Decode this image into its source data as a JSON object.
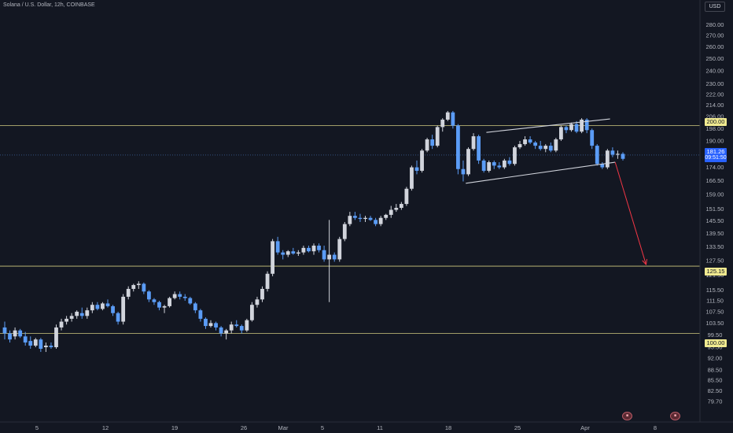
{
  "header": {
    "title": "Solana / U.S. Dollar, 12h, COINBASE",
    "currency": "USD"
  },
  "price_labels": {
    "level_200": "200.00",
    "level_125": "125.15",
    "level_100": "100.00",
    "current_price": "181.26",
    "countdown": "09:51:50"
  },
  "events": {
    "event1": "■",
    "event2": "■"
  },
  "colors": {
    "background": "#131722",
    "bull_candle": "#d1d4dc",
    "bear_candle": "#5b9cf6",
    "level_line": "#f0ea90",
    "channel_line": "#d1d4dc",
    "projection_arrow": "#f23645",
    "axis_text": "#b2b5be"
  },
  "chart_data": {
    "type": "candlestick",
    "title": "Solana / U.S. Dollar, 12h, COINBASE",
    "y_axis_scale": "log",
    "ylim": [
      76,
      290
    ],
    "y_ticks": [
      280,
      270,
      260,
      250,
      240,
      230,
      222,
      214,
      206,
      198,
      190,
      182,
      174,
      166.5,
      159,
      151.5,
      145.5,
      139.5,
      133.5,
      127.5,
      121.5,
      115.5,
      111.5,
      107.5,
      103.5,
      99.5,
      95.5,
      92,
      88.5,
      85.5,
      82.5,
      79.7
    ],
    "y_tick_labels": [
      "280.00",
      "270.00",
      "260.00",
      "250.00",
      "240.00",
      "230.00",
      "222.00",
      "214.00",
      "206.00",
      "198.00",
      "190.00",
      "182.00",
      "174.00",
      "166.50",
      "159.00",
      "151.50",
      "145.50",
      "139.50",
      "133.50",
      "127.50",
      "121.50",
      "115.50",
      "111.50",
      "107.50",
      "103.50",
      "99.50",
      "95.50",
      "92.00",
      "88.50",
      "85.50",
      "82.50",
      "79.70"
    ],
    "x_tick_labels": [
      "5",
      "12",
      "19",
      "26",
      "Mar",
      "5",
      "11",
      "18",
      "25",
      "Apr",
      "8"
    ],
    "grid": false,
    "horizontal_levels": [
      200.0,
      125.15,
      100.0
    ],
    "current_price": 181.26,
    "candles": [
      [
        102,
        104,
        98,
        100
      ],
      [
        100,
        101,
        97,
        98
      ],
      [
        99,
        102,
        98,
        101
      ],
      [
        101,
        101.5,
        98.5,
        99
      ],
      [
        99,
        100.5,
        96,
        97
      ],
      [
        97.5,
        99,
        95,
        96
      ],
      [
        96,
        98.5,
        95.5,
        98
      ],
      [
        98,
        98.5,
        94,
        95
      ],
      [
        95.5,
        97,
        94,
        96
      ],
      [
        96,
        97,
        95,
        95.5
      ],
      [
        95.5,
        103,
        95,
        102
      ],
      [
        102,
        105,
        101,
        104
      ],
      [
        104,
        106,
        103,
        105
      ],
      [
        105,
        107,
        104,
        106
      ],
      [
        106,
        108,
        105,
        107.5
      ],
      [
        107,
        109,
        105,
        106
      ],
      [
        106,
        109,
        105,
        108
      ],
      [
        108,
        111,
        107,
        110
      ],
      [
        110,
        111,
        108,
        108.5
      ],
      [
        108.5,
        111,
        108,
        110.5
      ],
      [
        110.5,
        112,
        109,
        109.5
      ],
      [
        109.5,
        110,
        106,
        107
      ],
      [
        107,
        107.5,
        103,
        104
      ],
      [
        104,
        114,
        103,
        113
      ],
      [
        113,
        117,
        112,
        116
      ],
      [
        116,
        118,
        115,
        117.5
      ],
      [
        117.5,
        119,
        116,
        118
      ],
      [
        118,
        118.5,
        114,
        115
      ],
      [
        115,
        115.5,
        111,
        112
      ],
      [
        112,
        112.5,
        110,
        111
      ],
      [
        111,
        111.5,
        108,
        109
      ],
      [
        109,
        110,
        107,
        109.5
      ],
      [
        109.5,
        113,
        109,
        112.5
      ],
      [
        112.5,
        115,
        112,
        114
      ],
      [
        114,
        115,
        112,
        113
      ],
      [
        113,
        114,
        111.5,
        112.5
      ],
      [
        112.5,
        113,
        110,
        110.5
      ],
      [
        110.5,
        111,
        107,
        108
      ],
      [
        108,
        108.5,
        104,
        105
      ],
      [
        105,
        105.5,
        101.5,
        102.5
      ],
      [
        102.5,
        104.5,
        102,
        103.5
      ],
      [
        103.5,
        104,
        101,
        102
      ],
      [
        102,
        102.5,
        99,
        100
      ],
      [
        100,
        101.5,
        98,
        101
      ],
      [
        101,
        104,
        100,
        103
      ],
      [
        103,
        104.5,
        102,
        102.5
      ],
      [
        102.5,
        103,
        100,
        101
      ],
      [
        101,
        105,
        100.5,
        104.5
      ],
      [
        104.5,
        111,
        104,
        110
      ],
      [
        110,
        113,
        109,
        112
      ],
      [
        112,
        117,
        111,
        116
      ],
      [
        116,
        123,
        115,
        122
      ],
      [
        122,
        137,
        121,
        136
      ],
      [
        136,
        138,
        130,
        131
      ],
      [
        131,
        132,
        128,
        130
      ],
      [
        130,
        132,
        129,
        131.5
      ],
      [
        131.5,
        133,
        130,
        130.5
      ],
      [
        130.5,
        132,
        129.5,
        131
      ],
      [
        131,
        134,
        130,
        133
      ],
      [
        133,
        134,
        131,
        131.5
      ],
      [
        131.5,
        135,
        130,
        134
      ],
      [
        134,
        135,
        131,
        132
      ],
      [
        132,
        134,
        127,
        128
      ],
      [
        128,
        146,
        111,
        130
      ],
      [
        130,
        131,
        127,
        128
      ],
      [
        128,
        138,
        127,
        137
      ],
      [
        137,
        145,
        136,
        144
      ],
      [
        144,
        150,
        143,
        148
      ],
      [
        148,
        150,
        146,
        147
      ],
      [
        147,
        149,
        145,
        146.5
      ],
      [
        146.5,
        148,
        145,
        147
      ],
      [
        147,
        148,
        145.5,
        146
      ],
      [
        146,
        147,
        143,
        144
      ],
      [
        144,
        148,
        143,
        147
      ],
      [
        147,
        149,
        146,
        148.5
      ],
      [
        148.5,
        153,
        147,
        151
      ],
      [
        151,
        154,
        150,
        152
      ],
      [
        152,
        155,
        151,
        154
      ],
      [
        154,
        163,
        153,
        162
      ],
      [
        162,
        175,
        161,
        174
      ],
      [
        174,
        178,
        170,
        172
      ],
      [
        172,
        185,
        171,
        184
      ],
      [
        184,
        192,
        183,
        191
      ],
      [
        191,
        194,
        185,
        187
      ],
      [
        187,
        200,
        186,
        199
      ],
      [
        199,
        205,
        196,
        204
      ],
      [
        204,
        210,
        203,
        209
      ],
      [
        209,
        210,
        198,
        200
      ],
      [
        200,
        201,
        170,
        173
      ],
      [
        173,
        178,
        166,
        170
      ],
      [
        170,
        186,
        169,
        185
      ],
      [
        185,
        195,
        184,
        193
      ],
      [
        193,
        194,
        176,
        178
      ],
      [
        178,
        179,
        171,
        172
      ],
      [
        172,
        178,
        171,
        177
      ],
      [
        177,
        178,
        173,
        175
      ],
      [
        175,
        177,
        173,
        174
      ],
      [
        174,
        179,
        173,
        178
      ],
      [
        178,
        180,
        175,
        176
      ],
      [
        176,
        187,
        175,
        186
      ],
      [
        186,
        190,
        185,
        188
      ],
      [
        188,
        193,
        187,
        191
      ],
      [
        191,
        193,
        188,
        189
      ],
      [
        189,
        190,
        185,
        187
      ],
      [
        187,
        190,
        184,
        185
      ],
      [
        185,
        188,
        183,
        187
      ],
      [
        187,
        189,
        183,
        184
      ],
      [
        184,
        192,
        183,
        191
      ],
      [
        191,
        200,
        190,
        199
      ],
      [
        199,
        200,
        195,
        197
      ],
      [
        197,
        202,
        196,
        201
      ],
      [
        201,
        203,
        195,
        196
      ],
      [
        196,
        205,
        195,
        204
      ],
      [
        204,
        205,
        195,
        197
      ],
      [
        197,
        198,
        185,
        187
      ],
      [
        187,
        188,
        175,
        176
      ],
      [
        176,
        177,
        173,
        174
      ],
      [
        174,
        185,
        173,
        184
      ],
      [
        184,
        186,
        180,
        181.5
      ],
      [
        181.5,
        184,
        179,
        182
      ],
      [
        182,
        183,
        178,
        179
      ]
    ],
    "channel": {
      "upper": [
        [
          93.5,
          195.5
        ],
        [
          117.5,
          204.5
        ]
      ],
      "lower": [
        [
          89.5,
          165
        ],
        [
          118.5,
          177
        ]
      ]
    },
    "projection": {
      "from": [
        118.5,
        177
      ],
      "to": [
        124.5,
        125.15
      ]
    }
  }
}
